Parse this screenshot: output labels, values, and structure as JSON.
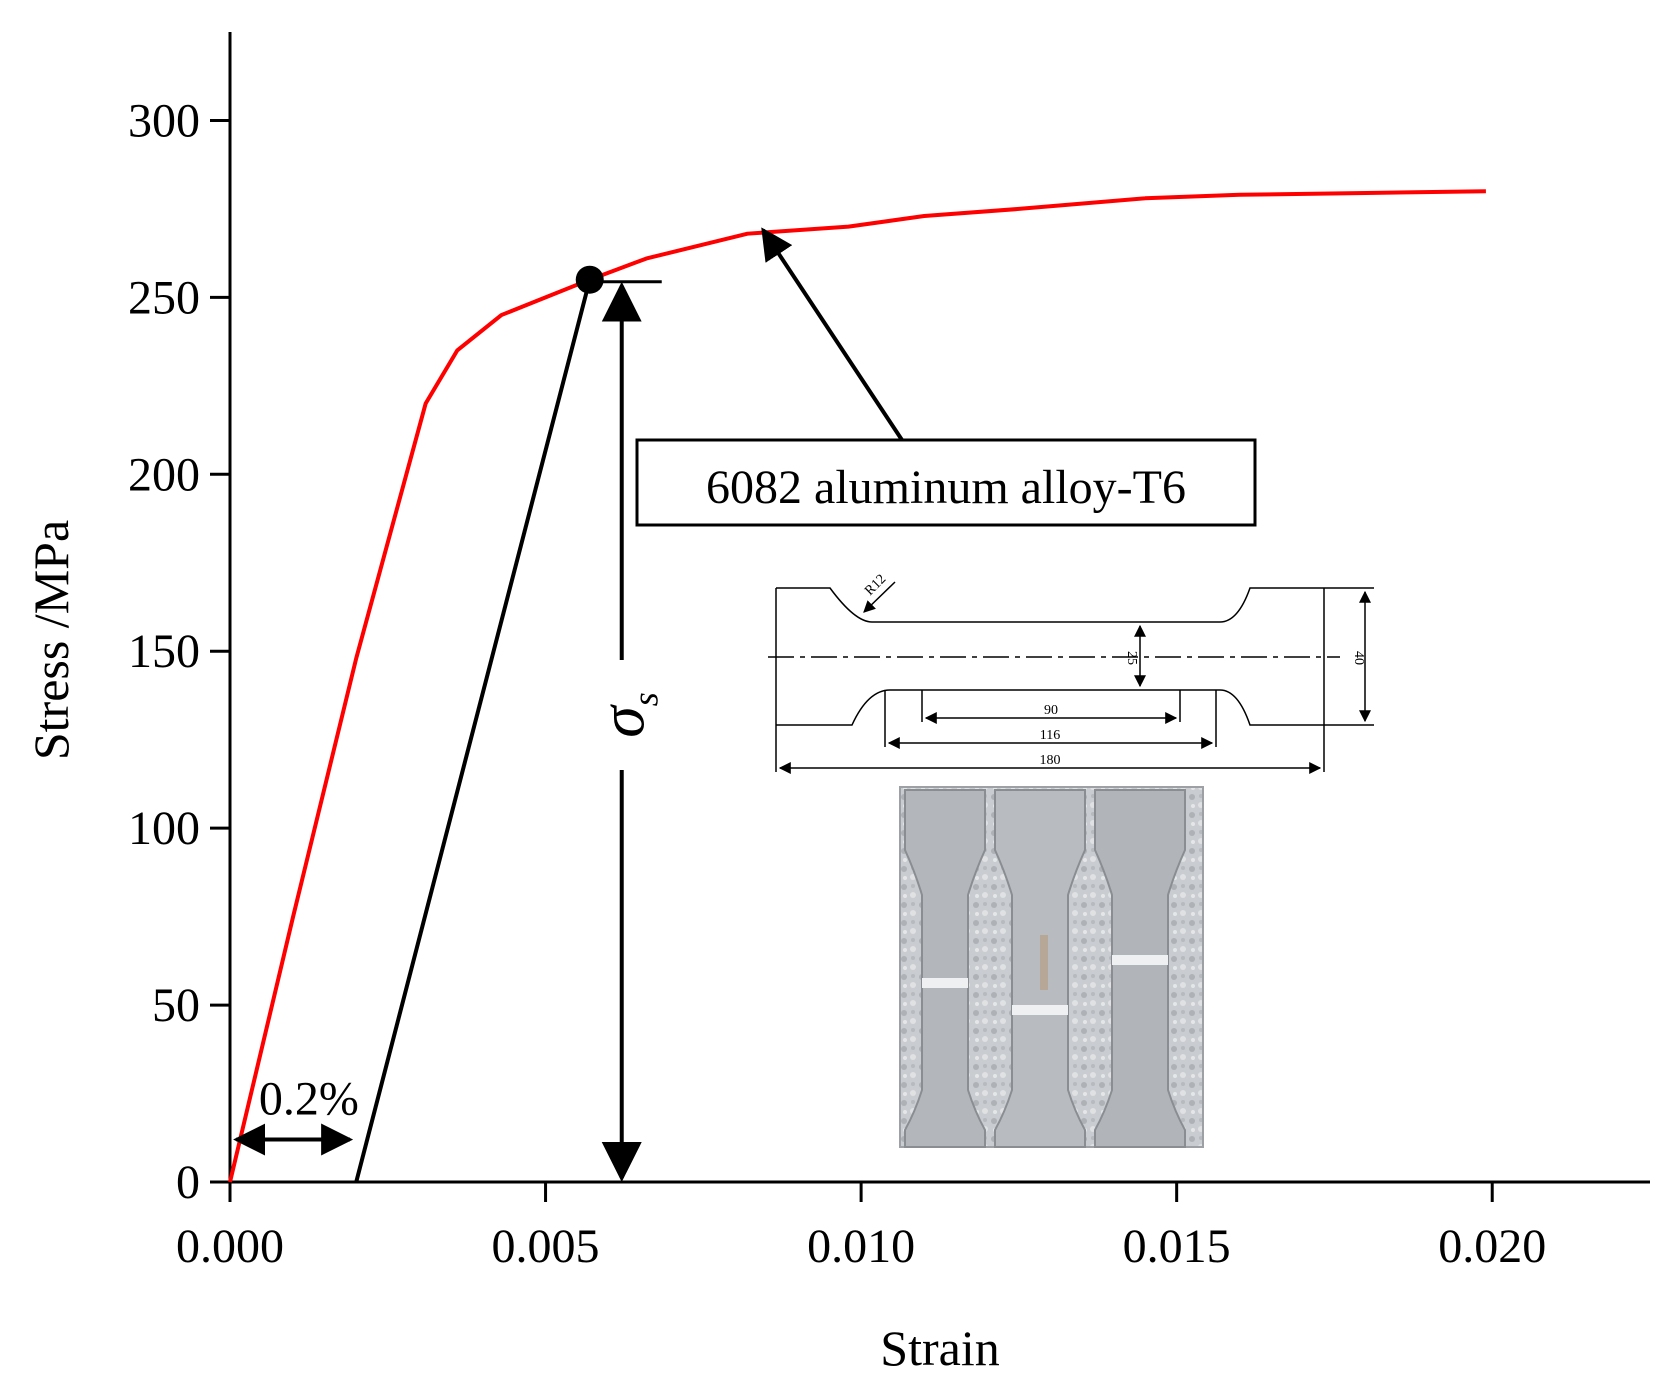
{
  "chart_data": {
    "type": "line",
    "xlabel": "Strain",
    "ylabel": "Stress /MPa",
    "xlim": [
      0,
      0.0225
    ],
    "ylim": [
      0,
      325
    ],
    "x_ticks": [
      0,
      0.005,
      0.01,
      0.015,
      0.02
    ],
    "x_tick_labels": [
      "0.000",
      "0.005",
      "0.010",
      "0.015",
      "0.020"
    ],
    "y_ticks": [
      0,
      50,
      100,
      150,
      200,
      250,
      300
    ],
    "y_tick_labels": [
      "0",
      "50",
      "100",
      "150",
      "200",
      "250",
      "300"
    ],
    "series": [
      {
        "name": "6082 aluminum alloy-T6",
        "color": "#ff0000",
        "x": [
          0,
          0.001,
          0.002,
          0.0031,
          0.0036,
          0.0043,
          0.005,
          0.0057,
          0.0066,
          0.0082,
          0.0098,
          0.011,
          0.0125,
          0.0145,
          0.016,
          0.018,
          0.0199
        ],
        "y": [
          0,
          75,
          148,
          220,
          235,
          245,
          250,
          255,
          261,
          268,
          270,
          273,
          275,
          278,
          279,
          279.5,
          280
        ]
      },
      {
        "name": "0.2% offset line",
        "color": "#000000",
        "x": [
          0.002,
          0.0057
        ],
        "y": [
          0,
          255
        ]
      }
    ],
    "yield_point": {
      "x": 0.0057,
      "y": 255
    },
    "annotations": {
      "curve_label": "6082 aluminum alloy-T6",
      "offset_label": "0.2%",
      "yield_symbol": "σ",
      "yield_subscript": "s"
    },
    "inset_drawing": {
      "dims": [
        "R12",
        "25",
        "40",
        "90",
        "116",
        "180"
      ]
    }
  }
}
